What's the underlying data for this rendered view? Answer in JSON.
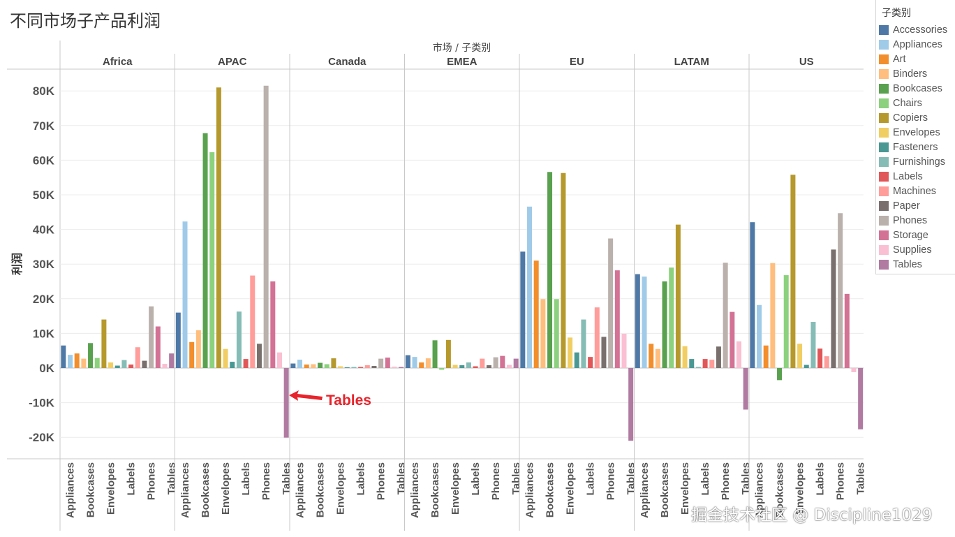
{
  "title": "不同市场子产品利润",
  "chart_data": {
    "type": "bar",
    "column_header": "市场 / 子类别",
    "ylabel": "利润",
    "ylim": [
      -26000,
      88000
    ],
    "yticks": [
      80000,
      70000,
      60000,
      50000,
      40000,
      30000,
      20000,
      10000,
      0,
      -10000,
      -20000
    ],
    "ytick_labels": [
      "80K",
      "70K",
      "60K",
      "50K",
      "40K",
      "30K",
      "20K",
      "10K",
      "0K",
      "-10K",
      "-20K"
    ],
    "x_labels_shown": [
      "Appliances",
      "Bookcases",
      "Envelopes",
      "Labels",
      "Phones",
      "Tables"
    ],
    "categories": [
      "Accessories",
      "Appliances",
      "Art",
      "Binders",
      "Bookcases",
      "Chairs",
      "Copiers",
      "Envelopes",
      "Fasteners",
      "Furnishings",
      "Labels",
      "Machines",
      "Paper",
      "Phones",
      "Storage",
      "Supplies",
      "Tables"
    ],
    "markets": [
      {
        "name": "Africa",
        "values": [
          6500,
          3800,
          4200,
          2700,
          7200,
          2900,
          14000,
          1600,
          700,
          2300,
          1000,
          6000,
          2100,
          17800,
          12000,
          1200,
          4200
        ]
      },
      {
        "name": "APAC",
        "values": [
          16000,
          42300,
          7500,
          10900,
          67800,
          62300,
          81000,
          5500,
          1800,
          16300,
          2600,
          26700,
          7000,
          81500,
          25000,
          4500,
          -20100
        ]
      },
      {
        "name": "Canada",
        "values": [
          1300,
          2400,
          1000,
          1100,
          1500,
          1100,
          2800,
          500,
          200,
          300,
          300,
          800,
          600,
          2700,
          3000,
          400,
          300
        ]
      },
      {
        "name": "EMEA",
        "values": [
          3700,
          3200,
          1600,
          2800,
          8000,
          -500,
          8100,
          900,
          800,
          1600,
          500,
          2700,
          800,
          3100,
          3500,
          900,
          2700
        ]
      },
      {
        "name": "EU",
        "values": [
          33600,
          46600,
          31000,
          19900,
          56600,
          19900,
          56300,
          8800,
          4500,
          14000,
          3200,
          17500,
          9000,
          37400,
          28200,
          9900,
          -21000
        ]
      },
      {
        "name": "LATAM",
        "values": [
          27100,
          26400,
          7000,
          5500,
          25000,
          29000,
          41400,
          6300,
          2600,
          300,
          2600,
          2400,
          6200,
          30400,
          16200,
          7700,
          -12000
        ]
      },
      {
        "name": "US",
        "values": [
          42100,
          18200,
          6500,
          30300,
          -3500,
          26800,
          55800,
          7000,
          900,
          13300,
          5600,
          3400,
          34200,
          44700,
          21400,
          -1200,
          -17700
        ]
      }
    ],
    "colors": [
      "#4e79a7",
      "#a0cbe8",
      "#f28e2b",
      "#ffbe7d",
      "#59a14f",
      "#8cd17d",
      "#b6992d",
      "#f1ce63",
      "#499894",
      "#86bcb6",
      "#e15759",
      "#ff9d9a",
      "#79706e",
      "#bab0ac",
      "#d37295",
      "#fabfd2",
      "#b07aa1"
    ],
    "annotation": {
      "text": "Tables",
      "color": "#e8232b"
    }
  },
  "legend": {
    "title": "子类别",
    "items": [
      "Accessories",
      "Appliances",
      "Art",
      "Binders",
      "Bookcases",
      "Chairs",
      "Copiers",
      "Envelopes",
      "Fasteners",
      "Furnishings",
      "Labels",
      "Machines",
      "Paper",
      "Phones",
      "Storage",
      "Supplies",
      "Tables"
    ]
  },
  "watermark": "掘金技术社区 @ Discipline1029"
}
